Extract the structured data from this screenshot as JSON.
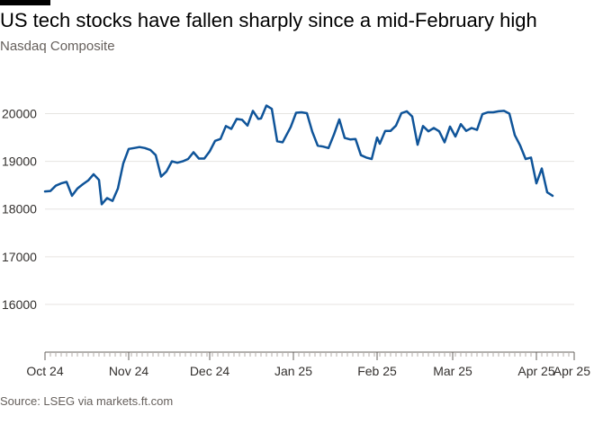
{
  "title": "US tech stocks have fallen sharply since a mid-February high",
  "subtitle": "Nasdaq Composite",
  "source": "Source: LSEG via markets.ft.com",
  "colors": {
    "line": "#0f5499",
    "grid": "#e6e4e1",
    "axis": "#66605c",
    "text": "#33302e",
    "background": "#ffffff"
  },
  "chart_data": {
    "type": "line",
    "title": "US tech stocks have fallen sharply since a mid-February high",
    "subtitle": "Nasdaq Composite",
    "xlabel": "",
    "ylabel": "",
    "ylim": [
      15000,
      20500
    ],
    "yticks": [
      16000,
      17000,
      18000,
      19000,
      20000
    ],
    "ytick_labels": [
      "16000",
      "17000",
      "18000",
      "19000",
      "20000"
    ],
    "grid": true,
    "x_axis": "dates",
    "xlim": [
      "2024-10-01",
      "2025-04-15"
    ],
    "xticks": [
      "2024-10-01",
      "2024-11-01",
      "2024-12-01",
      "2025-01-01",
      "2025-02-01",
      "2025-03-01",
      "2025-04-01",
      "2025-04-15"
    ],
    "xtick_labels": [
      "Oct 24",
      "Nov 24",
      "Dec 24",
      "Jan 25",
      "Feb 25",
      "Mar 25",
      "Apr 25",
      "Apr 25"
    ],
    "series": [
      {
        "points": [
          [
            "2024-10-01",
            18370
          ],
          [
            "2024-10-03",
            18380
          ],
          [
            "2024-10-05",
            18490
          ],
          [
            "2024-10-07",
            18540
          ],
          [
            "2024-10-09",
            18570
          ],
          [
            "2024-10-11",
            18280
          ],
          [
            "2024-10-13",
            18430
          ],
          [
            "2024-10-15",
            18520
          ],
          [
            "2024-10-17",
            18600
          ],
          [
            "2024-10-19",
            18730
          ],
          [
            "2024-10-21",
            18610
          ],
          [
            "2024-10-22",
            18100
          ],
          [
            "2024-10-24",
            18230
          ],
          [
            "2024-10-26",
            18170
          ],
          [
            "2024-10-28",
            18430
          ],
          [
            "2024-10-30",
            18960
          ],
          [
            "2024-11-01",
            19260
          ],
          [
            "2024-11-03",
            19280
          ],
          [
            "2024-11-05",
            19300
          ],
          [
            "2024-11-07",
            19280
          ],
          [
            "2024-11-09",
            19240
          ],
          [
            "2024-11-11",
            19130
          ],
          [
            "2024-11-13",
            18680
          ],
          [
            "2024-11-15",
            18790
          ],
          [
            "2024-11-17",
            19000
          ],
          [
            "2024-11-19",
            18970
          ],
          [
            "2024-11-21",
            19000
          ],
          [
            "2024-11-23",
            19050
          ],
          [
            "2024-11-25",
            19190
          ],
          [
            "2024-11-27",
            19060
          ],
          [
            "2024-11-29",
            19060
          ],
          [
            "2024-12-01",
            19210
          ],
          [
            "2024-12-03",
            19430
          ],
          [
            "2024-12-05",
            19470
          ],
          [
            "2024-12-07",
            19740
          ],
          [
            "2024-12-09",
            19680
          ],
          [
            "2024-12-11",
            19890
          ],
          [
            "2024-12-13",
            19870
          ],
          [
            "2024-12-15",
            19750
          ],
          [
            "2024-12-17",
            20060
          ],
          [
            "2024-12-19",
            19890
          ],
          [
            "2024-12-20",
            19900
          ],
          [
            "2024-12-22",
            20170
          ],
          [
            "2024-12-24",
            20100
          ],
          [
            "2024-12-26",
            19420
          ],
          [
            "2024-12-28",
            19400
          ],
          [
            "2024-12-31",
            19720
          ],
          [
            "2025-01-02",
            20020
          ],
          [
            "2025-01-04",
            20030
          ],
          [
            "2025-01-06",
            20010
          ],
          [
            "2025-01-08",
            19620
          ],
          [
            "2025-01-10",
            19330
          ],
          [
            "2025-01-12",
            19310
          ],
          [
            "2025-01-14",
            19280
          ],
          [
            "2025-01-16",
            19560
          ],
          [
            "2025-01-18",
            19880
          ],
          [
            "2025-01-20",
            19490
          ],
          [
            "2025-01-22",
            19460
          ],
          [
            "2025-01-24",
            19470
          ],
          [
            "2025-01-26",
            19130
          ],
          [
            "2025-01-28",
            19080
          ],
          [
            "2025-01-30",
            19050
          ],
          [
            "2025-02-01",
            19500
          ],
          [
            "2025-02-02",
            19370
          ],
          [
            "2025-02-04",
            19640
          ],
          [
            "2025-02-06",
            19640
          ],
          [
            "2025-02-08",
            19750
          ],
          [
            "2025-02-10",
            20010
          ],
          [
            "2025-02-12",
            20050
          ],
          [
            "2025-02-14",
            19940
          ],
          [
            "2025-02-16",
            19350
          ],
          [
            "2025-02-18",
            19740
          ],
          [
            "2025-02-20",
            19630
          ],
          [
            "2025-02-22",
            19700
          ],
          [
            "2025-02-24",
            19630
          ],
          [
            "2025-02-26",
            19400
          ],
          [
            "2025-02-28",
            19730
          ],
          [
            "2025-03-02",
            19520
          ],
          [
            "2025-03-04",
            19780
          ],
          [
            "2025-03-06",
            19640
          ],
          [
            "2025-03-08",
            19700
          ],
          [
            "2025-03-10",
            19660
          ],
          [
            "2025-03-12",
            19990
          ],
          [
            "2025-03-14",
            20030
          ],
          [
            "2025-03-16",
            20030
          ],
          [
            "2025-03-18",
            20050
          ],
          [
            "2025-03-20",
            20060
          ],
          [
            "2025-03-22",
            20000
          ],
          [
            "2025-03-24",
            19550
          ],
          [
            "2025-03-26",
            19330
          ],
          [
            "2025-03-28",
            19050
          ],
          [
            "2025-03-30",
            19080
          ],
          [
            "2025-04-01",
            18540
          ],
          [
            "2025-04-03",
            18850
          ],
          [
            "2025-04-05",
            18350
          ],
          [
            "2025-04-07",
            18280
          ]
        ]
      }
    ]
  }
}
